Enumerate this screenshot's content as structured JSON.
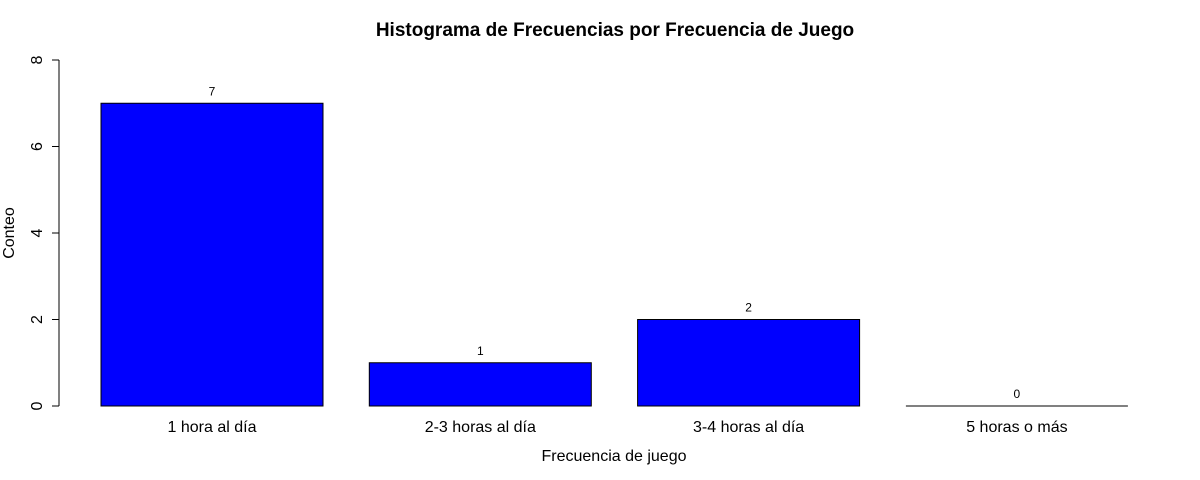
{
  "chart_data": {
    "type": "bar",
    "title": "Histograma de Frecuencias por Frecuencia de Juego",
    "xlabel": "Frecuencia de juego",
    "ylabel": "Conteo",
    "categories": [
      "1 hora al día",
      "2-3 horas al día",
      "3-4 horas al día",
      "5 horas o más"
    ],
    "values": [
      7,
      1,
      2,
      0
    ],
    "data_labels": [
      "7",
      "1",
      "2",
      "0"
    ],
    "ylim": [
      0,
      8
    ],
    "yticks": [
      0,
      2,
      4,
      6,
      8
    ],
    "ytick_labels": [
      "0",
      "2",
      "4",
      "6",
      "8"
    ],
    "bar_color": "#0000ff",
    "bar_border_color": "#000000",
    "grid": false,
    "legend": "none"
  }
}
